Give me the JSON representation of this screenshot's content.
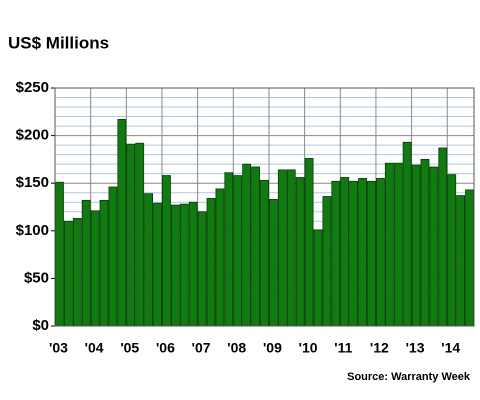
{
  "chart_data": {
    "type": "bar",
    "title": "US$ Millions",
    "source": "Source: Warranty Week",
    "categories": [
      "'03",
      null,
      null,
      null,
      "'04",
      null,
      null,
      null,
      "'05",
      null,
      null,
      null,
      "'06",
      null,
      null,
      null,
      "'07",
      null,
      null,
      null,
      "'08",
      null,
      null,
      null,
      "'09",
      null,
      null,
      null,
      "'10",
      null,
      null,
      null,
      "'11",
      null,
      null,
      null,
      "'12",
      null,
      null,
      null,
      "'13",
      null,
      null,
      null,
      "'14",
      null,
      null
    ],
    "values": [
      151,
      110,
      113,
      132,
      121,
      132,
      146,
      217,
      191,
      192,
      139,
      129,
      158,
      127,
      128,
      130,
      120,
      134,
      144,
      161,
      158,
      170,
      167,
      153,
      133,
      164,
      164,
      156,
      176,
      101,
      136,
      152,
      156,
      152,
      155,
      152,
      155,
      171,
      171,
      193,
      169,
      175,
      167,
      187,
      159,
      137,
      143
    ],
    "color": "#107c10",
    "ylim": [
      0,
      250
    ],
    "yticks": [
      {
        "value": 0,
        "label": "$0"
      },
      {
        "value": 50,
        "label": "$50"
      },
      {
        "value": 100,
        "label": "$100"
      },
      {
        "value": 150,
        "label": "$150"
      },
      {
        "value": 200,
        "label": "$200"
      },
      {
        "value": 250,
        "label": "$250"
      }
    ],
    "minor_yticks": [
      10,
      20,
      30,
      40,
      60,
      70,
      80,
      90,
      110,
      120,
      130,
      140,
      160,
      170,
      180,
      190,
      210,
      220,
      230,
      240
    ],
    "grid": true
  }
}
